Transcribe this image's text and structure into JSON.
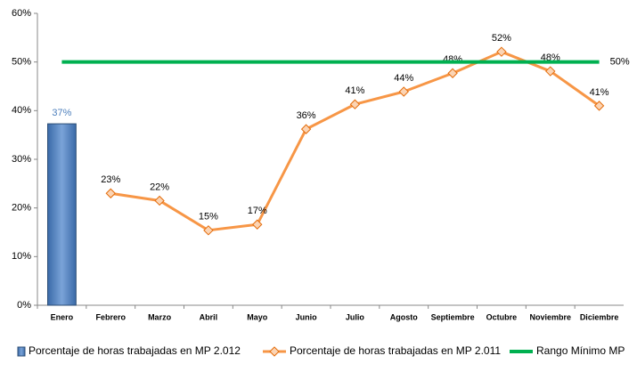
{
  "chart_data": {
    "type": "combo",
    "categories": [
      "Enero",
      "Febrero",
      "Marzo",
      "Abril",
      "Mayo",
      "Junio",
      "Julio",
      "Agosto",
      "Septiembre",
      "Octubre",
      "Noviembre",
      "Diciembre"
    ],
    "series": [
      {
        "name": "Porcentaje de horas trabajadas en MP 2.012",
        "type": "bar",
        "color": "#4f81bd",
        "values": [
          37.3,
          null,
          null,
          null,
          null,
          null,
          null,
          null,
          null,
          null,
          null,
          null
        ],
        "value_labels": [
          "37%",
          null,
          null,
          null,
          null,
          null,
          null,
          null,
          null,
          null,
          null,
          null
        ]
      },
      {
        "name": "Porcentaje de horas trabajadas en MP 2.011",
        "type": "line",
        "color": "#f79646",
        "values": [
          null,
          23.0,
          21.5,
          15.4,
          16.6,
          36.2,
          41.3,
          43.9,
          47.7,
          52.1,
          48.1,
          41.0
        ],
        "value_labels": [
          null,
          "23%",
          "22%",
          "15%",
          "17%",
          "36%",
          "41%",
          "44%",
          "48%",
          "52%",
          "48%",
          "41%"
        ]
      },
      {
        "name": "Rango Mínimo MP",
        "type": "line",
        "color": "#00b050",
        "values": [
          50,
          50,
          50,
          50,
          50,
          50,
          50,
          50,
          50,
          50,
          50,
          50
        ],
        "value_labels": [
          null,
          null,
          null,
          null,
          null,
          null,
          null,
          null,
          null,
          null,
          null,
          "50%"
        ]
      }
    ],
    "ylim": [
      0,
      60
    ],
    "yticks": [
      {
        "value": 0,
        "label": "0%"
      },
      {
        "value": 10,
        "label": "10%"
      },
      {
        "value": 20,
        "label": "20%"
      },
      {
        "value": 30,
        "label": "30%"
      },
      {
        "value": 40,
        "label": "40%"
      },
      {
        "value": 50,
        "label": "50%"
      },
      {
        "value": 60,
        "label": "60%"
      }
    ],
    "legend": "bottom"
  }
}
